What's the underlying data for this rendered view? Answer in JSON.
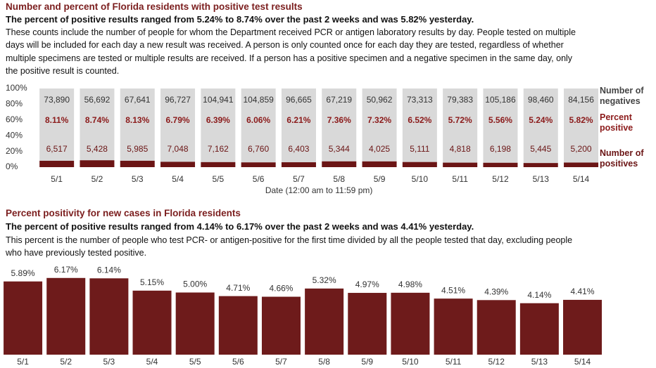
{
  "chart_data": [
    {
      "type": "stacked_bar_100",
      "title": "Number and percent of Florida residents with positive test results",
      "subtitle": "The percent of positive results ranged from 5.24% to 8.74% over the past 2 weeks and was 5.82% yesterday.",
      "description": "These counts include the number of people for whom the Department received PCR or antigen laboratory results by day. People tested on multiple days will be included for each day a new result was received. A person is only counted once for each day they are tested, regardless of whether multiple specimens are tested or multiple results are received. If a person has a positive specimen and a negative specimen in the same day, only the positive result is counted.",
      "x_label": "Date (12:00 am to 11:59 pm)",
      "categories": [
        "5/1",
        "5/2",
        "5/3",
        "5/4",
        "5/5",
        "5/6",
        "5/7",
        "5/8",
        "5/9",
        "5/10",
        "5/11",
        "5/12",
        "5/13",
        "5/14"
      ],
      "series": [
        {
          "name": "Number of negatives",
          "color": "#d9d9d9",
          "values": [
            73890,
            56692,
            67641,
            96727,
            104941,
            104859,
            96665,
            67219,
            50962,
            73313,
            79383,
            105186,
            98460,
            84156
          ],
          "value_labels": [
            "73,890",
            "56,692",
            "67,641",
            "96,727",
            "104,941",
            "104,859",
            "96,665",
            "67,219",
            "50,962",
            "73,313",
            "79,383",
            "105,186",
            "98,460",
            "84,156"
          ]
        },
        {
          "name": "Percent positive",
          "color": "#8b1a1a",
          "values": [
            8.11,
            8.74,
            8.13,
            6.79,
            6.39,
            6.06,
            6.21,
            7.36,
            7.32,
            6.52,
            5.72,
            5.56,
            5.24,
            5.82
          ],
          "value_labels": [
            "8.11%",
            "8.74%",
            "8.13%",
            "6.79%",
            "6.39%",
            "6.06%",
            "6.21%",
            "7.36%",
            "7.32%",
            "6.52%",
            "5.72%",
            "5.56%",
            "5.24%",
            "5.82%"
          ]
        },
        {
          "name": "Number of positives",
          "color": "#6b1515",
          "values": [
            6517,
            5428,
            5985,
            7048,
            7162,
            6760,
            6403,
            5344,
            4025,
            5111,
            4818,
            6198,
            5445,
            5200
          ],
          "value_labels": [
            "6,517",
            "5,428",
            "5,985",
            "7,048",
            "7,162",
            "6,760",
            "6,403",
            "5,344",
            "4,025",
            "5,111",
            "4,818",
            "6,198",
            "5,445",
            "5,200"
          ]
        }
      ],
      "ylim": [
        0,
        100
      ],
      "yticks": [
        {
          "value": 0,
          "label": "0%"
        },
        {
          "value": 20,
          "label": "20%"
        },
        {
          "value": 40,
          "label": "40%"
        },
        {
          "value": 60,
          "label": "60%"
        },
        {
          "value": 80,
          "label": "80%"
        },
        {
          "value": 100,
          "label": "100%"
        }
      ]
    },
    {
      "type": "bar",
      "title": "Percent positivity for new cases in Florida residents",
      "subtitle": "The percent of positive results ranged from 4.14% to 6.17% over the past 2 weeks and was 4.41% yesterday.",
      "description": "This percent is the number of people who test PCR- or antigen-positive for the first time divided by all the people tested that day, excluding people who have previously tested positive.",
      "categories": [
        "5/1",
        "5/2",
        "5/3",
        "5/4",
        "5/5",
        "5/6",
        "5/7",
        "5/8",
        "5/9",
        "5/10",
        "5/11",
        "5/12",
        "5/13",
        "5/14"
      ],
      "values": [
        5.89,
        6.17,
        6.14,
        5.15,
        5.0,
        4.71,
        4.66,
        5.32,
        4.97,
        4.98,
        4.51,
        4.39,
        4.14,
        4.41
      ],
      "value_labels": [
        "5.89%",
        "6.17%",
        "6.14%",
        "5.15%",
        "5.00%",
        "4.71%",
        "4.66%",
        "5.32%",
        "4.97%",
        "4.98%",
        "4.51%",
        "4.39%",
        "4.14%",
        "4.41%"
      ],
      "color": "#6e1b1b"
    }
  ]
}
